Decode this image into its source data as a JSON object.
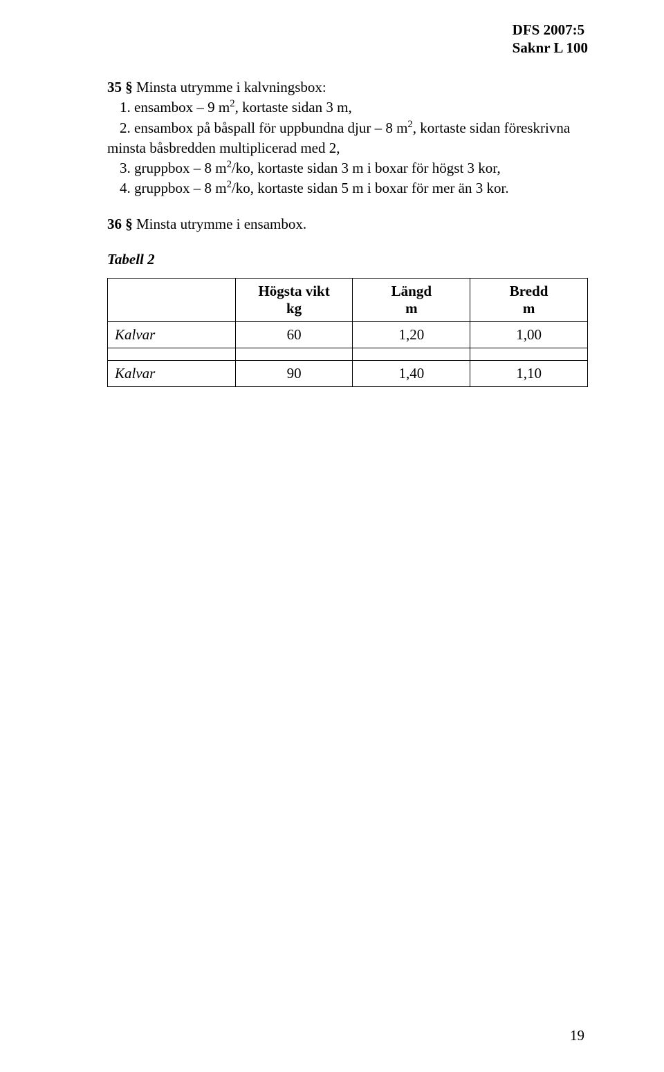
{
  "header": {
    "line1": "DFS 2007:5",
    "line2": "Saknr L 100"
  },
  "section35": {
    "lead_bold": "35 §",
    "lead_rest": "  Minsta utrymme i kalvningsbox:",
    "item1_pre": "1. ensambox – 9 m",
    "item1_sup": "2",
    "item1_post": ", kortaste sidan 3 m,",
    "item2_pre": "2. ensambox på båspall för uppbundna djur – 8 m",
    "item2_sup": "2",
    "item2_post": ", kortaste sidan föreskrivna",
    "item2_cont": "minsta båsbredden multiplicerad med 2,",
    "item3_pre": "3. gruppbox – 8 m",
    "item3_sup": "2",
    "item3_post": "/ko, kortaste sidan 3 m i boxar för högst 3 kor,",
    "item4_pre": "4. gruppbox – 8 m",
    "item4_sup": "2",
    "item4_post": "/ko, kortaste sidan 5 m i boxar för mer än 3 kor."
  },
  "section36": {
    "lead_bold": "36 §",
    "lead_rest": "  Minsta utrymme i ensambox."
  },
  "tabell_label": "Tabell 2",
  "table": {
    "columns": [
      {
        "h1": "",
        "h2": ""
      },
      {
        "h1": "Högsta vikt",
        "h2": "kg"
      },
      {
        "h1": "Längd",
        "h2": "m"
      },
      {
        "h1": "Bredd",
        "h2": "m"
      }
    ],
    "rows": [
      {
        "label": "Kalvar",
        "c1": "60",
        "c2": "1,20",
        "c3": "1,00"
      },
      {
        "label": "Kalvar",
        "c1": "90",
        "c2": "1,40",
        "c3": "1,10"
      }
    ]
  },
  "page_number": "19"
}
